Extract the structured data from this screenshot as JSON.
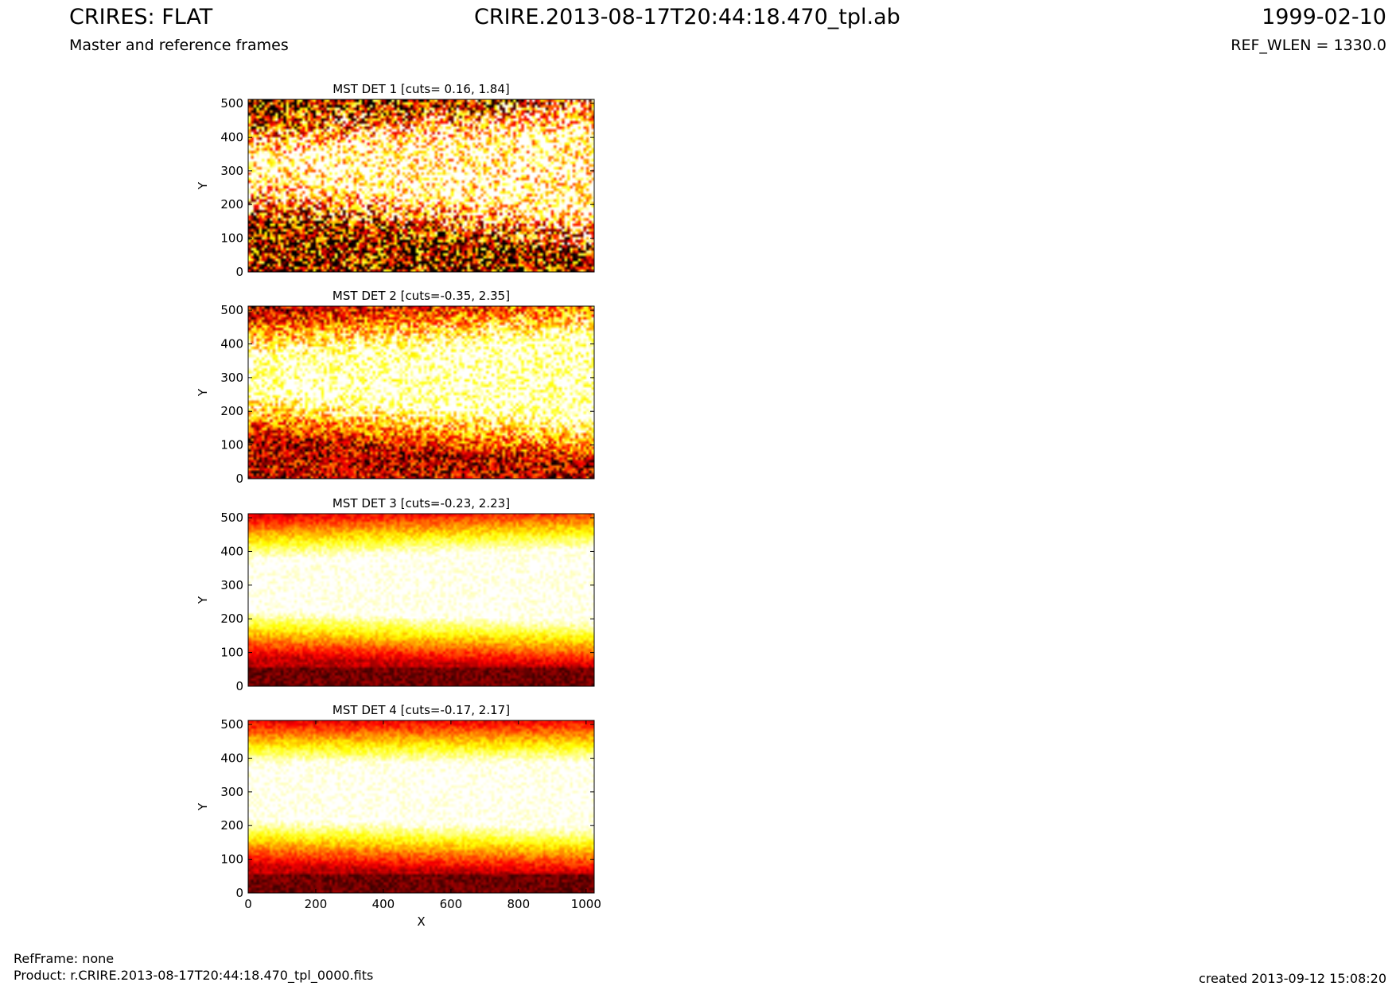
{
  "header": {
    "title_left": "CRIRES: FLAT",
    "title_center": "CRIRE.2013-08-17T20:44:18.470_tpl.ab",
    "title_right": "1999-02-10",
    "subtitle_left": "Master and reference frames",
    "subtitle_right": "REF_WLEN = 1330.0"
  },
  "footer": {
    "refframe": "RefFrame: none",
    "product": "Product: r.CRIRE.2013-08-17T20:44:18.470_tpl_0000.fits",
    "created": "created 2013-09-12 15:08:20"
  },
  "chart_data": [
    {
      "type": "heatmap",
      "title": "MST DET 1 [cuts= 0.16, 1.84]",
      "ylabel": "Y",
      "xlim": [
        0,
        1024
      ],
      "ylim": [
        0,
        512
      ],
      "yticks": [
        0,
        100,
        200,
        300,
        400,
        500
      ],
      "xticks": [],
      "colormap": "hot",
      "cuts": [
        0.16,
        1.84
      ],
      "noise": 0.55,
      "band": {
        "center_at_x0": 310,
        "center_at_x1024": 300,
        "halfwidth_at_x0": 25,
        "halfwidth_at_x1024": 120
      }
    },
    {
      "type": "heatmap",
      "title": "MST DET 2 [cuts=-0.35, 2.35]",
      "ylabel": "Y",
      "xlim": [
        0,
        1024
      ],
      "ylim": [
        0,
        512
      ],
      "yticks": [
        0,
        100,
        200,
        300,
        400,
        500
      ],
      "xticks": [],
      "colormap": "hot",
      "cuts": [
        -0.35,
        2.35
      ],
      "noise": 0.3,
      "band": {
        "center_at_x0": 305,
        "center_at_x1024": 300,
        "halfwidth_at_x0": 45,
        "halfwidth_at_x1024": 120
      }
    },
    {
      "type": "heatmap",
      "title": "MST DET 3 [cuts=-0.23, 2.23]",
      "ylabel": "Y",
      "xlim": [
        0,
        1024
      ],
      "ylim": [
        0,
        512
      ],
      "yticks": [
        0,
        100,
        200,
        300,
        400,
        500
      ],
      "xticks": [],
      "colormap": "hot",
      "cuts": [
        -0.23,
        2.23
      ],
      "noise": 0.08,
      "band": {
        "center_at_x0": 300,
        "center_at_x1024": 300,
        "halfwidth_at_x0": 75,
        "halfwidth_at_x1024": 105
      }
    },
    {
      "type": "heatmap",
      "title": "MST DET 4 [cuts=-0.17, 2.17]",
      "ylabel": "Y",
      "xlabel": "X",
      "xlim": [
        0,
        1024
      ],
      "ylim": [
        0,
        512
      ],
      "yticks": [
        0,
        100,
        200,
        300,
        400,
        500
      ],
      "xticks": [
        0,
        200,
        400,
        600,
        800,
        1000
      ],
      "colormap": "hot",
      "cuts": [
        -0.17,
        2.17
      ],
      "noise": 0.08,
      "band": {
        "center_at_x0": 300,
        "center_at_x1024": 290,
        "halfwidth_at_x0": 80,
        "halfwidth_at_x1024": 95
      }
    }
  ]
}
